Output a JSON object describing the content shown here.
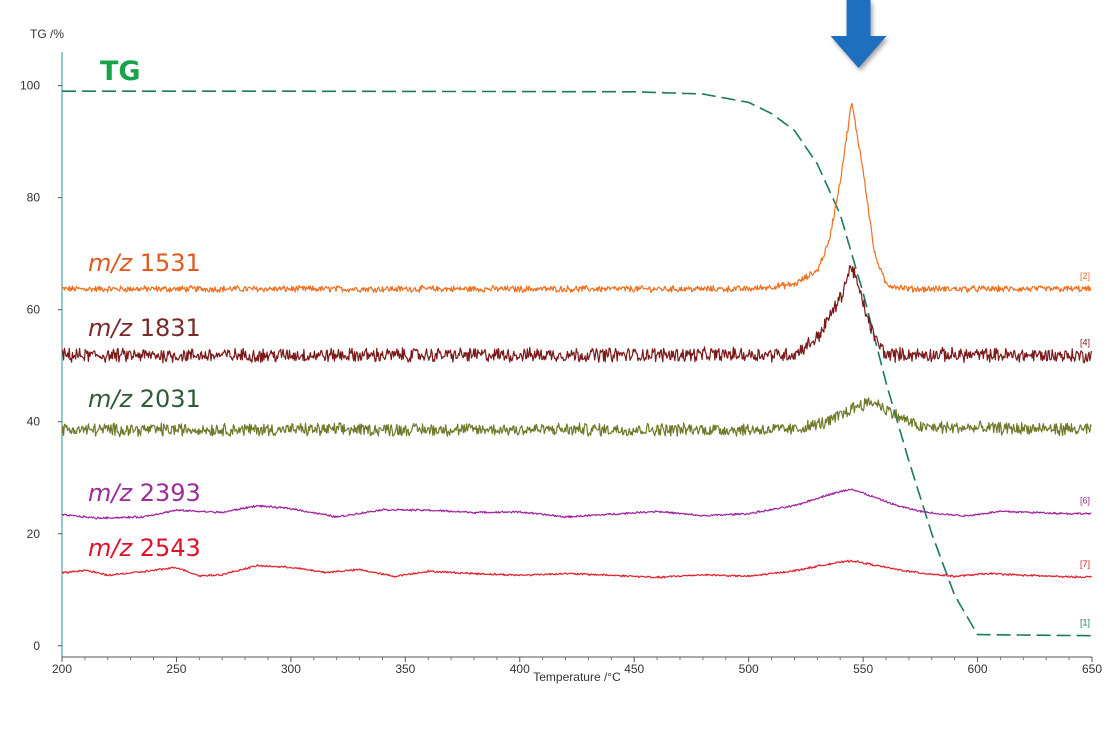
{
  "chart_data": {
    "type": "line",
    "ylabel": "TG /%",
    "xlabel": "Temperature /°C",
    "xlim": [
      200,
      650
    ],
    "ylim": [
      -2,
      106
    ],
    "xticks": [
      200,
      250,
      300,
      350,
      400,
      450,
      500,
      550,
      600,
      650
    ],
    "yticks": [
      0,
      20,
      40,
      60,
      80,
      100
    ],
    "grid": false,
    "annotations": [
      {
        "type": "arrow",
        "x": 548,
        "color": "#1f6fbf"
      }
    ],
    "series": [
      {
        "name": "TG",
        "label_prefix": "",
        "label_value": "TG",
        "end_tag": "[1]",
        "color": "#1a7a5c",
        "label_color": "#18a34a",
        "dash": true,
        "x": [
          200,
          300,
          450,
          480,
          500,
          510,
          520,
          530,
          540,
          550,
          560,
          570,
          580,
          590,
          600,
          650
        ],
        "y": [
          99,
          99,
          98.9,
          98.5,
          97,
          95,
          92,
          86,
          77,
          63,
          47,
          33,
          20,
          9,
          2,
          1.8
        ]
      },
      {
        "name": "m/z 1531",
        "label_prefix": "m/z",
        "label_value": "1531",
        "end_tag": "[2]",
        "color": "#f07020",
        "label_color": "#e05a1c",
        "noise": 0.5,
        "x": [
          200,
          500,
          520,
          530,
          535,
          540,
          545,
          550,
          555,
          560,
          570,
          650
        ],
        "y": [
          63.7,
          63.7,
          64.5,
          67,
          72,
          83,
          97,
          85,
          70,
          64.5,
          63.7,
          63.7
        ]
      },
      {
        "name": "m/z 1831",
        "label_prefix": "m/z",
        "label_value": "1831",
        "end_tag": "[4]",
        "color": "#7a1a1a",
        "label_color": "#7a2a2a",
        "noise": 1.1,
        "x": [
          200,
          520,
          530,
          540,
          545,
          550,
          555,
          560,
          650
        ],
        "y": [
          51.8,
          52,
          55,
          62,
          68,
          61,
          55,
          52,
          51.8
        ]
      },
      {
        "name": "m/z 2031",
        "label_prefix": "m/z",
        "label_value": "2031",
        "end_tag": "",
        "color": "#6e7a2a",
        "label_color": "#2e5a38",
        "noise": 1.0,
        "x": [
          200,
          520,
          535,
          548,
          555,
          565,
          575,
          650
        ],
        "y": [
          38.6,
          38.6,
          40,
          43,
          43.5,
          41,
          39,
          38.6
        ]
      },
      {
        "name": "m/z 2393",
        "label_prefix": "m/z",
        "label_value": "2393",
        "end_tag": "[6]",
        "color": "#a020a0",
        "label_color": "#9c2c9c",
        "noise": 0.15,
        "x": [
          200,
          215,
          235,
          250,
          270,
          285,
          300,
          320,
          340,
          360,
          380,
          400,
          420,
          440,
          460,
          480,
          500,
          520,
          535,
          545,
          555,
          565,
          575,
          585,
          595,
          610,
          625,
          640,
          650
        ],
        "y": [
          23.4,
          22.8,
          23,
          24.2,
          23.8,
          25,
          24.5,
          23,
          24.3,
          24.2,
          23.8,
          23.9,
          23,
          23.5,
          24,
          23.2,
          23.6,
          25,
          27,
          28,
          26.5,
          25,
          24,
          23.5,
          23.2,
          24,
          23.8,
          23.6,
          23.6
        ]
      },
      {
        "name": "m/z 2543",
        "label_prefix": "m/z",
        "label_value": "2543",
        "end_tag": "[7]",
        "color": "#e0202c",
        "label_color": "#e0102a",
        "noise": 0.15,
        "x": [
          200,
          210,
          220,
          235,
          250,
          260,
          270,
          285,
          300,
          315,
          330,
          345,
          360,
          380,
          400,
          420,
          440,
          460,
          480,
          500,
          520,
          535,
          545,
          555,
          565,
          575,
          590,
          605,
          620,
          640,
          650
        ],
        "y": [
          13,
          13.5,
          12.6,
          13.2,
          14,
          12.5,
          12.7,
          14.3,
          14,
          13.1,
          13.6,
          12.4,
          13.3,
          12.9,
          12.6,
          12.9,
          12.6,
          12.2,
          12.7,
          12.4,
          13.4,
          14.6,
          15.2,
          14.4,
          13.6,
          13,
          12.4,
          12.9,
          12.6,
          12.3,
          12.3
        ]
      }
    ]
  }
}
